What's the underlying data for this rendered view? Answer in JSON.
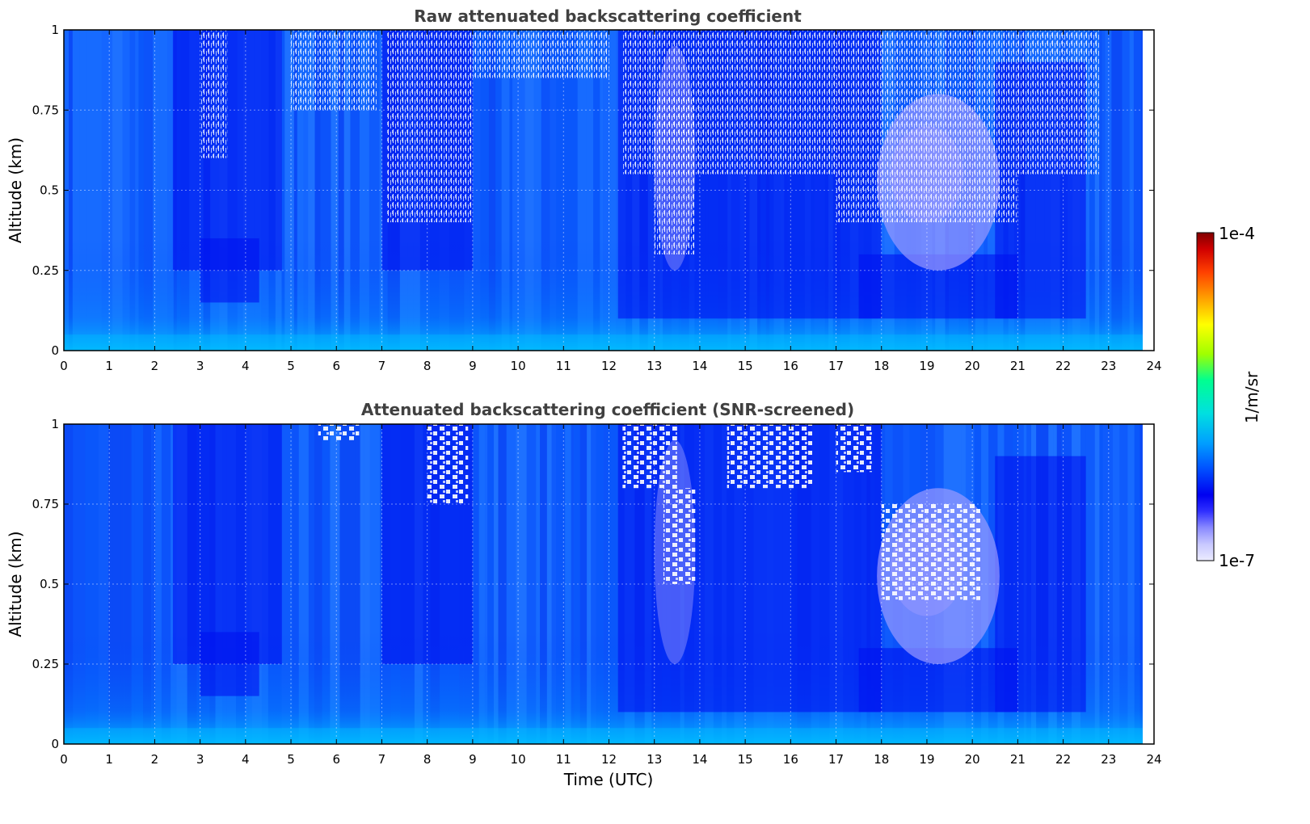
{
  "chart_data": [
    {
      "type": "heatmap",
      "title": "Raw attenuated backscattering coefficient",
      "xlabel": "",
      "ylabel": "Altitude (km)",
      "xlim": [
        0,
        24
      ],
      "ylim": [
        0,
        1
      ],
      "xticks": [
        "0",
        "1",
        "2",
        "3",
        "4",
        "5",
        "6",
        "7",
        "8",
        "9",
        "10",
        "11",
        "12",
        "13",
        "14",
        "15",
        "16",
        "17",
        "18",
        "19",
        "20",
        "21",
        "22",
        "23",
        "24"
      ],
      "yticks": [
        "0",
        "0.25",
        "0.5",
        "0.75",
        "1"
      ],
      "data_end_hour": 23.75,
      "grid": true,
      "features": [
        {
          "t_start": 2.4,
          "t_end": 4.8,
          "alt_min": 0.2,
          "alt_max": 1.0,
          "level": "dark"
        },
        {
          "t_start": 7.0,
          "t_end": 9.0,
          "alt_min": 0.3,
          "alt_max": 1.0,
          "level": "dark-noisy"
        },
        {
          "t_start": 13.0,
          "t_end": 14.0,
          "alt_min": 0.25,
          "alt_max": 1.0,
          "level": "faint-noisy"
        },
        {
          "t_start": 17.8,
          "t_end": 20.6,
          "alt_min": 0.25,
          "alt_max": 0.8,
          "level": "faint"
        }
      ]
    },
    {
      "type": "heatmap",
      "title": "Attenuated backscattering coefficient (SNR-screened)",
      "xlabel": "Time (UTC)",
      "ylabel": "Altitude (km)",
      "xlim": [
        0,
        24
      ],
      "ylim": [
        0,
        1
      ],
      "xticks": [
        "0",
        "1",
        "2",
        "3",
        "4",
        "5",
        "6",
        "7",
        "8",
        "9",
        "10",
        "11",
        "12",
        "13",
        "14",
        "15",
        "16",
        "17",
        "18",
        "19",
        "20",
        "21",
        "22",
        "23",
        "24"
      ],
      "yticks": [
        "0",
        "0.25",
        "0.5",
        "0.75",
        "1"
      ],
      "data_end_hour": 23.75,
      "grid": true,
      "screened_regions": [
        {
          "t_start": 8.0,
          "t_end": 8.9,
          "alt_min": 0.75,
          "alt_max": 1.0
        },
        {
          "t_start": 12.3,
          "t_end": 13.5,
          "alt_min": 0.8,
          "alt_max": 1.0
        },
        {
          "t_start": 17.0,
          "t_end": 17.8,
          "alt_min": 0.85,
          "alt_max": 1.0
        }
      ]
    }
  ],
  "colorbar": {
    "label": "1/m/sr",
    "max_label": "1e-4",
    "min_label": "1e-7",
    "scale": "log",
    "range": [
      1e-07,
      0.0001
    ],
    "colormap": [
      "#ececff",
      "#c8c8ff",
      "#8a8aff",
      "#3030ff",
      "#0000f0",
      "#0050ff",
      "#00a0ff",
      "#00e0e0",
      "#00ff90",
      "#a0ff00",
      "#ffff00",
      "#ffa000",
      "#ff4000",
      "#d00000",
      "#800000"
    ]
  }
}
